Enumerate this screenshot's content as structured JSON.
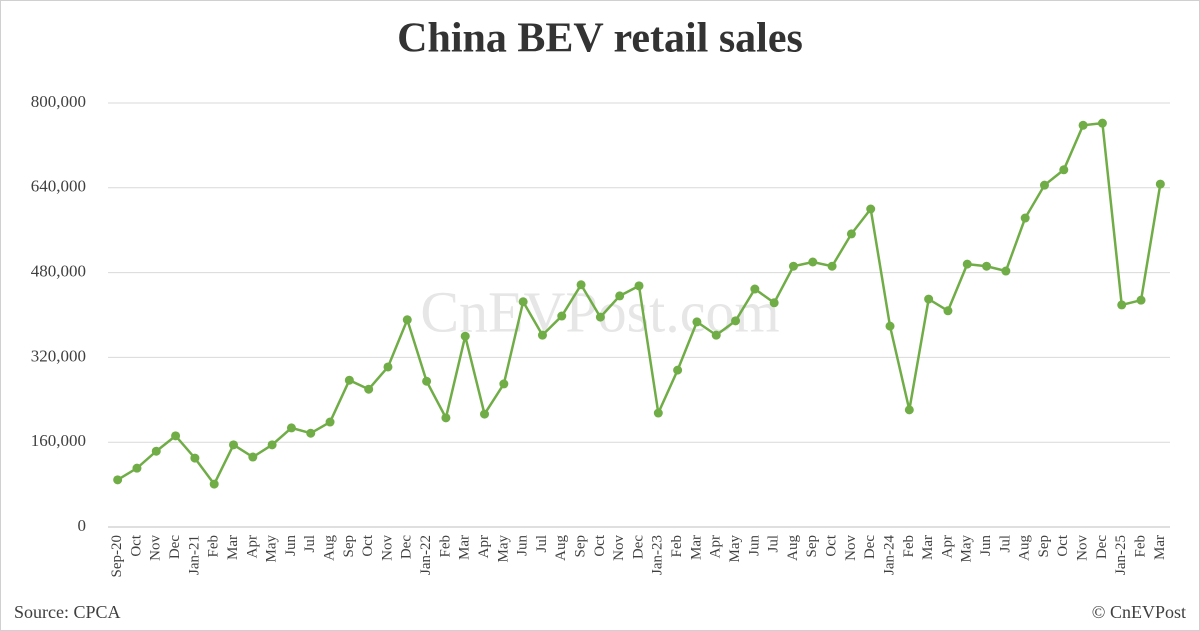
{
  "chart_data": {
    "type": "line",
    "title": "China BEV retail sales",
    "watermark": "CnEVPost.com",
    "source": "Source: CPCA",
    "credit": "© CnEVPost",
    "categories": [
      "Sep-20",
      "Oct",
      "Nov",
      "Dec",
      "Jan-21",
      "Feb",
      "Mar",
      "Apr",
      "May",
      "Jun",
      "Jul",
      "Aug",
      "Sep",
      "Oct",
      "Nov",
      "Dec",
      "Jan-22",
      "Feb",
      "Mar",
      "Apr",
      "May",
      "Jun",
      "Jul",
      "Aug",
      "Sep",
      "Oct",
      "Nov",
      "Dec",
      "Jan-23",
      "Feb",
      "Mar",
      "Apr",
      "May",
      "Jun",
      "Jul",
      "Aug",
      "Sep",
      "Oct",
      "Nov",
      "Dec",
      "Jan-24",
      "Feb",
      "Mar",
      "Apr",
      "May",
      "Jun",
      "Jul",
      "Aug",
      "Sep",
      "Oct",
      "Nov",
      "Dec",
      "Jan-25",
      "Feb",
      "Mar"
    ],
    "series": [
      {
        "name": "BEV retail sales",
        "color": "#70ad47",
        "values": [
          89000,
          111000,
          143000,
          172000,
          130000,
          81000,
          155000,
          132000,
          155000,
          187000,
          177000,
          198000,
          277000,
          260000,
          302000,
          391000,
          275000,
          206000,
          360000,
          213000,
          270000,
          425000,
          362000,
          398000,
          457000,
          396000,
          436000,
          455000,
          215000,
          296000,
          387000,
          362000,
          389000,
          449000,
          423000,
          492000,
          500000,
          492000,
          553000,
          600000,
          379000,
          221000,
          430000,
          408000,
          496000,
          492000,
          483000,
          583000,
          645000,
          674000,
          758000,
          762000,
          419000,
          428000,
          647000
        ]
      }
    ],
    "ylim": [
      0,
      800000
    ],
    "yticks": [
      0,
      {
        "value": 160000,
        "label": "160,000"
      },
      {
        "value": 320000,
        "label": "320,000"
      },
      {
        "value": 480000,
        "label": "480,000"
      },
      {
        "value": 640000,
        "label": "640,000"
      },
      {
        "value": 800000,
        "label": "800,000"
      }
    ],
    "grid": true
  }
}
